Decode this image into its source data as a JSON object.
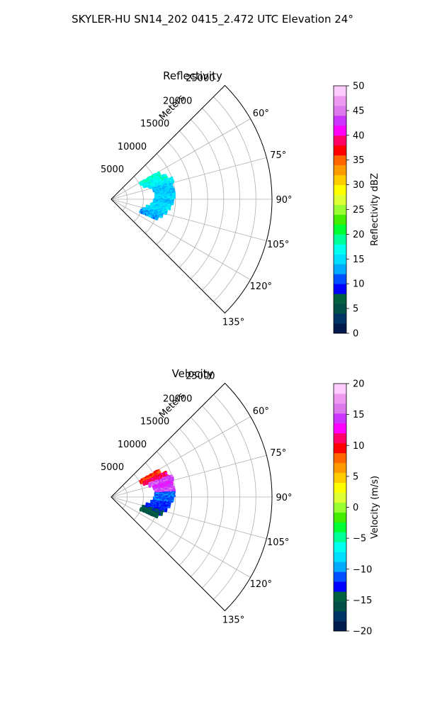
{
  "figure_title": "SKYLER-HU  SN14_202  0415_2.472 UTC Elevation 24°",
  "chart_data": [
    {
      "type": "heatmap",
      "subtype": "polar-sector-ppi",
      "title": "Reflectivity",
      "radial_axis_label": "Meters",
      "radial_ticks": [
        5000,
        10000,
        15000,
        20000,
        25000
      ],
      "radial_tick_labels": [
        "5000",
        "10000",
        "15000",
        "20000",
        "25000"
      ],
      "rlim": [
        0,
        25000
      ],
      "azimuth_range_deg": [
        45,
        135
      ],
      "azimuth_ticks_deg": [
        60,
        75,
        90,
        105,
        120,
        135
      ],
      "azimuth_tick_labels": [
        "60°",
        "75°",
        "90°",
        "105°",
        "120°",
        "135°"
      ],
      "grid": true,
      "colorbar": {
        "label": "Reflectivity dBZ",
        "min": 0,
        "max": 50,
        "ticks": [
          0,
          5,
          10,
          15,
          20,
          25,
          30,
          35,
          40,
          45,
          50
        ],
        "tick_labels": [
          "0",
          "5",
          "10",
          "15",
          "20",
          "25",
          "30",
          "35",
          "40",
          "45",
          "50"
        ],
        "colors": [
          "#001a4d",
          "#003366",
          "#00504a",
          "#006040",
          "#0000ff",
          "#0050ff",
          "#00aaff",
          "#00ddff",
          "#00ffee",
          "#00ff99",
          "#00ff33",
          "#44ee00",
          "#99ff33",
          "#ddff33",
          "#ffff00",
          "#ffcc00",
          "#ff9900",
          "#ff6600",
          "#ff0000",
          "#ff0066",
          "#ff00ff",
          "#cc33ff",
          "#dd77ee",
          "#ee99f0",
          "#ffccff"
        ]
      },
      "echo_band": [
        {
          "az_deg": 63,
          "r_min": 5200,
          "r_max": 8600,
          "value": 18
        },
        {
          "az_deg": 68,
          "r_min": 5500,
          "r_max": 9300,
          "value": 17
        },
        {
          "az_deg": 73,
          "r_min": 6200,
          "r_max": 10000,
          "value": 16
        },
        {
          "az_deg": 78,
          "r_min": 6800,
          "r_max": 9800,
          "value": 14
        },
        {
          "az_deg": 83,
          "r_min": 7000,
          "r_max": 10000,
          "value": 14
        },
        {
          "az_deg": 88,
          "r_min": 6900,
          "r_max": 9800,
          "value": 15
        },
        {
          "az_deg": 93,
          "r_min": 6700,
          "r_max": 9600,
          "value": 14
        },
        {
          "az_deg": 98,
          "r_min": 6300,
          "r_max": 9300,
          "value": 15
        },
        {
          "az_deg": 103,
          "r_min": 5700,
          "r_max": 8800,
          "value": 15
        },
        {
          "az_deg": 108,
          "r_min": 5200,
          "r_max": 8300,
          "value": 14
        },
        {
          "az_deg": 112,
          "r_min": 5000,
          "r_max": 7700,
          "value": 13
        }
      ]
    },
    {
      "type": "heatmap",
      "subtype": "polar-sector-ppi",
      "title": "Velocity",
      "radial_axis_label": "Meters",
      "radial_ticks": [
        5000,
        10000,
        15000,
        20000,
        25000
      ],
      "radial_tick_labels": [
        "5000",
        "10000",
        "15000",
        "20000",
        "25000"
      ],
      "rlim": [
        0,
        25000
      ],
      "azimuth_range_deg": [
        45,
        135
      ],
      "azimuth_ticks_deg": [
        60,
        75,
        90,
        105,
        120,
        135
      ],
      "azimuth_tick_labels": [
        "60°",
        "75°",
        "90°",
        "105°",
        "120°",
        "135°"
      ],
      "grid": true,
      "colorbar": {
        "label": "Velocity (m/s)",
        "min": -20,
        "max": 20,
        "ticks": [
          -20,
          -15,
          -10,
          -5,
          0,
          5,
          10,
          15,
          20
        ],
        "tick_labels": [
          "−20",
          "−15",
          "−10",
          "−5",
          "0",
          "5",
          "10",
          "15",
          "20"
        ],
        "colors": [
          "#001a4d",
          "#003366",
          "#00504a",
          "#006040",
          "#0000ff",
          "#0050ff",
          "#00aaff",
          "#00ddff",
          "#00ffee",
          "#00ff99",
          "#00ff33",
          "#44ee00",
          "#99ff33",
          "#ddff33",
          "#ffff00",
          "#ffcc00",
          "#ff9900",
          "#ff6600",
          "#ff0000",
          "#ff0066",
          "#ff00ff",
          "#cc33ff",
          "#dd77ee",
          "#ee99f0",
          "#ffccff"
        ]
      },
      "echo_band": [
        {
          "az_deg": 63,
          "r_min": 5200,
          "r_max": 8600,
          "value": 9
        },
        {
          "az_deg": 68,
          "r_min": 5500,
          "r_max": 9300,
          "value": 11
        },
        {
          "az_deg": 73,
          "r_min": 6200,
          "r_max": 10000,
          "value": 15
        },
        {
          "az_deg": 78,
          "r_min": 6800,
          "r_max": 9800,
          "value": 14
        },
        {
          "az_deg": 83,
          "r_min": 7000,
          "r_max": 10000,
          "value": 15
        },
        {
          "az_deg": 88,
          "r_min": 6900,
          "r_max": 9800,
          "value": -11
        },
        {
          "az_deg": 93,
          "r_min": 6700,
          "r_max": 9600,
          "value": -11
        },
        {
          "az_deg": 98,
          "r_min": 6300,
          "r_max": 9300,
          "value": -12
        },
        {
          "az_deg": 103,
          "r_min": 5700,
          "r_max": 8800,
          "value": -12
        },
        {
          "az_deg": 108,
          "r_min": 5200,
          "r_max": 8300,
          "value": -14
        },
        {
          "az_deg": 112,
          "r_min": 5000,
          "r_max": 7700,
          "value": -15
        }
      ]
    }
  ]
}
